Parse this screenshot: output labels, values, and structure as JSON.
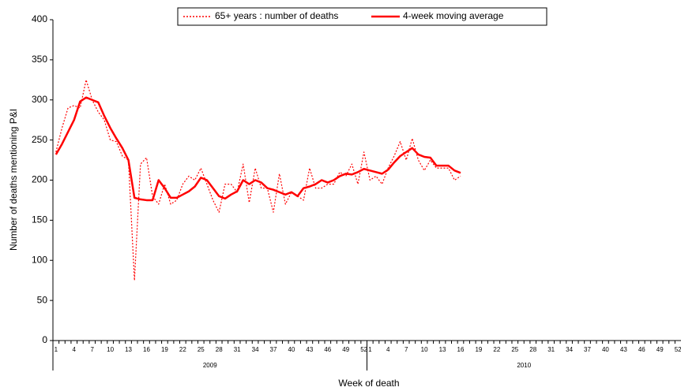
{
  "chart_data": {
    "type": "line",
    "y_label": "Number of deaths mentioning P&I",
    "x_label": "Week of death",
    "x_groups": [
      "2009",
      "2010"
    ],
    "categories": [
      "1",
      null,
      null,
      "4",
      null,
      null,
      "7",
      null,
      null,
      "10",
      null,
      null,
      "13",
      null,
      null,
      "16",
      null,
      null,
      "19",
      null,
      null,
      "22",
      null,
      null,
      "25",
      null,
      null,
      "28",
      null,
      null,
      "31",
      null,
      null,
      "34",
      null,
      null,
      "37",
      null,
      null,
      "40",
      null,
      null,
      "43",
      null,
      null,
      "46",
      null,
      null,
      "49",
      null,
      null,
      "52",
      "1",
      null,
      null,
      "4",
      null,
      null,
      "7",
      null,
      null,
      "10",
      null,
      null,
      "13",
      null,
      null,
      "16",
      null,
      null,
      "19",
      null,
      null,
      "22",
      null,
      null,
      "25",
      null,
      null,
      "28",
      null,
      null,
      "31",
      null,
      null,
      "34",
      null,
      null,
      "37",
      null,
      null,
      "40",
      null,
      null,
      "43",
      null,
      null,
      "46",
      null,
      null,
      "49",
      null,
      null,
      "52"
    ],
    "series": [
      {
        "name": "65+ years : number of deaths",
        "color": "#ff0000",
        "dashed": true,
        "values": [
          235,
          265,
          290,
          293,
          290,
          325,
          300,
          285,
          275,
          250,
          248,
          230,
          225,
          75,
          220,
          228,
          180,
          170,
          195,
          170,
          175,
          195,
          205,
          200,
          215,
          195,
          175,
          160,
          195,
          195,
          185,
          220,
          172,
          215,
          190,
          190,
          160,
          208,
          170,
          185,
          180,
          175,
          215,
          190,
          190,
          195,
          195,
          210,
          205,
          220,
          195,
          235,
          200,
          205,
          195,
          215,
          230,
          248,
          225,
          252,
          225,
          212,
          225,
          215,
          215,
          215,
          200,
          205,
          null,
          null,
          null,
          null,
          null,
          null,
          null,
          null,
          null,
          null,
          null,
          null,
          null,
          null,
          null,
          null,
          null,
          null,
          null,
          null,
          null,
          null,
          null,
          null,
          null,
          null,
          null,
          null,
          null,
          null,
          null,
          null,
          null,
          null,
          null,
          null
        ]
      },
      {
        "name": "4-week moving average",
        "color": "#ff0000",
        "dashed": false,
        "values": [
          232,
          245,
          260,
          275,
          298,
          303,
          300,
          297,
          280,
          265,
          252,
          240,
          225,
          178,
          176,
          175,
          175,
          200,
          190,
          178,
          178,
          182,
          186,
          192,
          203,
          200,
          190,
          180,
          177,
          182,
          186,
          200,
          195,
          200,
          197,
          190,
          188,
          185,
          182,
          185,
          180,
          190,
          192,
          195,
          200,
          197,
          200,
          205,
          208,
          207,
          210,
          214,
          212,
          210,
          208,
          213,
          222,
          230,
          235,
          240,
          232,
          229,
          228,
          218,
          218,
          218,
          212,
          209,
          null,
          null,
          null,
          null,
          null,
          null,
          null,
          null,
          null,
          null,
          null,
          null,
          null,
          null,
          null,
          null,
          null,
          null,
          null,
          null,
          null,
          null,
          null,
          null,
          null,
          null,
          null,
          null,
          null,
          null,
          null,
          null,
          null,
          null,
          null,
          null
        ]
      }
    ],
    "ylim": [
      0,
      400
    ],
    "yticks": [
      0,
      50,
      100,
      150,
      200,
      250,
      300,
      350,
      400
    ],
    "grid": false,
    "legend": "top"
  }
}
